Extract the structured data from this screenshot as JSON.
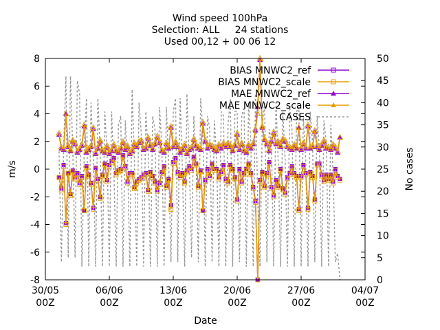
{
  "chart_data": {
    "type": "line",
    "title": [
      "Wind speed 100hPa",
      "Selection: ALL     24 stations",
      "Used 00,12 + 00 06 12"
    ],
    "xlabel": "Date",
    "ylabel": "m/s",
    "y2label": "No cases",
    "xlim": [
      "2014-05-30T00",
      "2014-07-04T00"
    ],
    "ylim": [
      -8,
      8
    ],
    "y2lim": [
      0,
      50
    ],
    "x_ticks": [
      {
        "value": "2014-05-30T00",
        "label": [
          "30/05",
          "00Z"
        ]
      },
      {
        "value": "2014-06-06T00",
        "label": [
          "06/06",
          "00Z"
        ]
      },
      {
        "value": "2014-06-13T00",
        "label": [
          "13/06",
          "00Z"
        ]
      },
      {
        "value": "2014-06-20T00",
        "label": [
          "20/06",
          "00Z"
        ]
      },
      {
        "value": "2014-06-27T00",
        "label": [
          "27/06",
          "00Z"
        ]
      },
      {
        "value": "2014-07-04T00",
        "label": [
          "04/07",
          "00Z"
        ]
      }
    ],
    "y_ticks": [
      -8,
      -6,
      -4,
      -2,
      0,
      2,
      4,
      6,
      8
    ],
    "y2_ticks": [
      0,
      5,
      10,
      15,
      20,
      25,
      30,
      35,
      40,
      45,
      50
    ],
    "grid": false,
    "legend": "top-right",
    "legend_entries": [
      "BIAS MNWC2_ref",
      "BIAS MNWC2_scale",
      "MAE MNWC2_ref",
      "MAE MNWC2_scale",
      "CASES"
    ],
    "colors": {
      "bias_ref": "#9400d3",
      "bias_scale": "#e69f00",
      "mae_ref": "#9400d3",
      "mae_scale": "#e69f00",
      "cases": "#999999"
    },
    "x_start": "2014-05-31T12",
    "x_step_hours": 6,
    "series": [
      {
        "name": "BIAS MNWC2_ref",
        "axis": "y",
        "marker": "square",
        "values": [
          -0.6,
          -1.4,
          0.3,
          -3.9,
          -0.3,
          -1.8,
          -0.1,
          -0.6,
          -0.3,
          -1.0,
          -0.5,
          -3.0,
          0.2,
          -0.4,
          -1.0,
          -2.8,
          0.1,
          -0.7,
          -2.0,
          -0.4,
          0.4,
          -0.8,
          0.3,
          0.6,
          0.8,
          -0.3,
          -0.1,
          0.0,
          1.0,
          0.2,
          -0.9,
          -0.3,
          -0.3,
          -1.3,
          -0.9,
          -0.7,
          -0.6,
          -0.4,
          -0.3,
          -1.5,
          -0.2,
          -0.5,
          -0.9,
          -1.5,
          -1.0,
          -0.2,
          0.2,
          -1.2,
          -0.7,
          -2.6,
          0.5,
          0.8,
          -0.2,
          -0.5,
          -0.3,
          -0.9,
          -0.1,
          0.2,
          0.0,
          0.9,
          0.4,
          -1.2,
          -0.1,
          -3.0,
          -0.8,
          0.0,
          -0.5,
          0.4,
          0.0,
          0.0,
          -0.6,
          -0.2,
          0.3,
          -0.7,
          -0.9,
          0.3,
          0.0,
          -0.6,
          -2.2,
          0.0,
          -0.9,
          -0.3,
          0.0,
          0.4,
          -0.3,
          -1.3,
          -2.3,
          -8.0,
          -0.8,
          -0.2,
          -1.2,
          -0.3,
          0.5,
          -1.3,
          -1.9,
          -0.8,
          -1.2,
          0.0,
          -1.4,
          -1.7,
          -0.6,
          -0.3,
          0.2,
          -0.3,
          -0.5,
          -2.9,
          -0.5,
          0.3,
          -0.3,
          -2.8,
          -0.2,
          -0.5,
          -2.2,
          0.4,
          0.4,
          -0.4,
          -0.8,
          -0.4,
          -0.7,
          -0.4,
          -0.9,
          0.0,
          -0.5,
          -0.7
        ]
      },
      {
        "name": "BIAS MNWC2_scale",
        "axis": "y",
        "marker": "square-open",
        "values": [
          -0.6,
          -1.5,
          0.2,
          -4.0,
          -0.3,
          -1.9,
          -0.2,
          -0.7,
          -0.4,
          -1.1,
          -0.6,
          -3.0,
          0.1,
          -0.5,
          -1.1,
          -2.9,
          0.0,
          -0.8,
          -2.1,
          -0.5,
          0.3,
          -0.9,
          0.2,
          0.5,
          0.7,
          -0.4,
          -0.2,
          -0.1,
          0.9,
          0.1,
          -1.0,
          -0.4,
          -0.4,
          -1.4,
          -1.0,
          -0.8,
          -0.7,
          -0.5,
          -0.4,
          -1.6,
          -0.3,
          -0.6,
          -1.0,
          -1.6,
          -1.1,
          -0.3,
          0.1,
          -1.3,
          -0.8,
          -2.9,
          0.4,
          0.7,
          -0.3,
          -0.6,
          -0.4,
          -1.0,
          -0.2,
          0.1,
          -0.1,
          0.8,
          0.3,
          -1.3,
          -0.2,
          -3.0,
          -0.9,
          -0.1,
          -0.6,
          0.3,
          -0.1,
          -0.1,
          -0.7,
          -0.3,
          0.2,
          -0.8,
          -1.0,
          0.2,
          -0.1,
          -0.7,
          -2.3,
          -0.1,
          -1.0,
          -0.4,
          -0.1,
          0.3,
          -0.4,
          -1.4,
          -2.4,
          -8.0,
          -0.9,
          -0.3,
          -1.3,
          -0.4,
          0.4,
          -1.4,
          -2.0,
          -0.9,
          -1.3,
          -0.1,
          -1.5,
          -1.8,
          -0.7,
          -0.4,
          0.1,
          -0.4,
          -0.6,
          -3.0,
          -0.6,
          0.2,
          -0.4,
          -2.9,
          -0.3,
          -0.6,
          -2.3,
          0.3,
          0.3,
          -0.5,
          -0.9,
          -0.5,
          -0.8,
          -0.5,
          -1.0,
          -0.1,
          -0.6,
          -0.8
        ]
      },
      {
        "name": "MAE MNWC2_ref",
        "axis": "y",
        "marker": "triangle",
        "values": [
          2.5,
          1.5,
          1.4,
          4.0,
          1.6,
          1.3,
          2.0,
          1.8,
          1.2,
          1.4,
          1.7,
          3.1,
          1.2,
          1.4,
          1.6,
          2.9,
          1.1,
          1.5,
          2.0,
          1.3,
          1.2,
          1.6,
          1.1,
          1.3,
          1.7,
          1.3,
          1.2,
          1.5,
          1.9,
          1.4,
          1.6,
          1.1,
          1.3,
          1.8,
          1.6,
          1.9,
          2.0,
          1.4,
          1.5,
          2.2,
          1.7,
          1.4,
          1.8,
          2.3,
          1.9,
          1.3,
          1.2,
          1.8,
          1.5,
          3.0,
          1.6,
          1.9,
          1.6,
          1.2,
          1.4,
          1.7,
          1.1,
          1.4,
          1.5,
          2.1,
          1.7,
          1.5,
          1.4,
          3.3,
          2.0,
          1.5,
          1.7,
          1.6,
          1.4,
          1.3,
          1.7,
          1.5,
          1.8,
          1.6,
          1.8,
          1.6,
          1.3,
          1.7,
          2.5,
          1.4,
          1.8,
          1.3,
          1.2,
          1.7,
          1.5,
          1.8,
          2.8,
          4.5,
          7.9,
          3.0,
          2.1,
          1.8,
          1.3,
          2.0,
          2.6,
          1.8,
          1.9,
          1.6,
          2.1,
          2.0,
          1.6,
          1.5,
          1.4,
          1.7,
          1.5,
          3.0,
          1.4,
          1.8,
          1.5,
          3.1,
          1.5,
          1.6,
          2.7,
          1.6,
          1.4,
          1.7,
          2.0,
          1.5,
          1.5,
          1.4,
          1.7,
          1.5,
          1.2,
          2.3
        ]
      },
      {
        "name": "MAE MNWC2_scale",
        "axis": "y",
        "marker": "triangle-open",
        "values": [
          2.6,
          1.6,
          1.5,
          4.0,
          1.7,
          1.4,
          2.1,
          1.9,
          1.3,
          1.5,
          1.8,
          3.2,
          1.3,
          1.5,
          1.7,
          3.0,
          1.2,
          1.6,
          2.1,
          1.4,
          1.3,
          1.7,
          1.2,
          1.4,
          1.8,
          1.4,
          1.3,
          1.6,
          2.0,
          1.5,
          1.7,
          1.2,
          1.4,
          1.9,
          1.7,
          2.0,
          2.1,
          1.5,
          1.6,
          2.3,
          1.8,
          1.5,
          1.9,
          2.4,
          2.0,
          1.4,
          1.3,
          1.9,
          1.6,
          3.1,
          1.7,
          2.0,
          1.7,
          1.3,
          1.5,
          1.8,
          1.2,
          1.5,
          1.6,
          2.2,
          1.8,
          1.6,
          1.5,
          3.4,
          2.1,
          1.6,
          1.8,
          1.7,
          1.5,
          1.4,
          1.8,
          1.6,
          1.9,
          1.7,
          1.9,
          1.7,
          1.4,
          1.8,
          2.6,
          1.5,
          1.9,
          1.4,
          1.3,
          1.8,
          1.6,
          1.9,
          2.9,
          4.0,
          8.0,
          3.1,
          2.2,
          1.9,
          1.4,
          2.1,
          2.7,
          1.9,
          2.0,
          1.7,
          2.2,
          2.1,
          1.7,
          1.6,
          1.5,
          1.8,
          1.6,
          3.0,
          1.5,
          1.9,
          1.6,
          3.2,
          1.6,
          1.7,
          2.8,
          1.7,
          1.5,
          1.8,
          2.1,
          1.6,
          1.6,
          1.5,
          1.8,
          1.6,
          1.3,
          2.3
        ]
      },
      {
        "name": "CASES",
        "axis": "y2",
        "marker": "none",
        "dashed": true,
        "values": [
          29,
          4,
          30,
          46,
          5,
          46,
          29,
          5,
          45,
          42,
          3,
          29,
          41,
          3,
          40,
          27,
          3,
          41,
          29,
          3,
          38,
          29,
          3,
          38,
          25,
          3,
          35,
          37,
          3,
          36,
          27,
          3,
          43,
          27,
          3,
          40,
          33,
          3,
          38,
          29,
          3,
          37,
          34,
          3,
          39,
          30,
          3,
          39,
          26,
          4,
          38,
          41,
          4,
          41,
          25,
          3,
          42,
          27,
          5,
          37,
          27,
          4,
          41,
          33,
          3,
          37,
          34,
          4,
          36,
          27,
          3,
          38,
          37,
          3,
          35,
          41,
          3,
          38,
          38,
          4,
          37,
          39,
          3,
          40,
          31,
          3,
          42,
          18,
          3,
          35,
          40,
          4,
          34,
          31,
          3,
          40,
          26,
          3,
          38,
          27,
          3,
          39,
          34,
          3,
          38,
          39,
          3,
          37,
          27,
          3,
          38,
          31,
          4,
          37,
          29,
          3,
          36,
          31,
          3,
          35,
          24,
          4,
          6,
          0
        ]
      }
    ]
  }
}
